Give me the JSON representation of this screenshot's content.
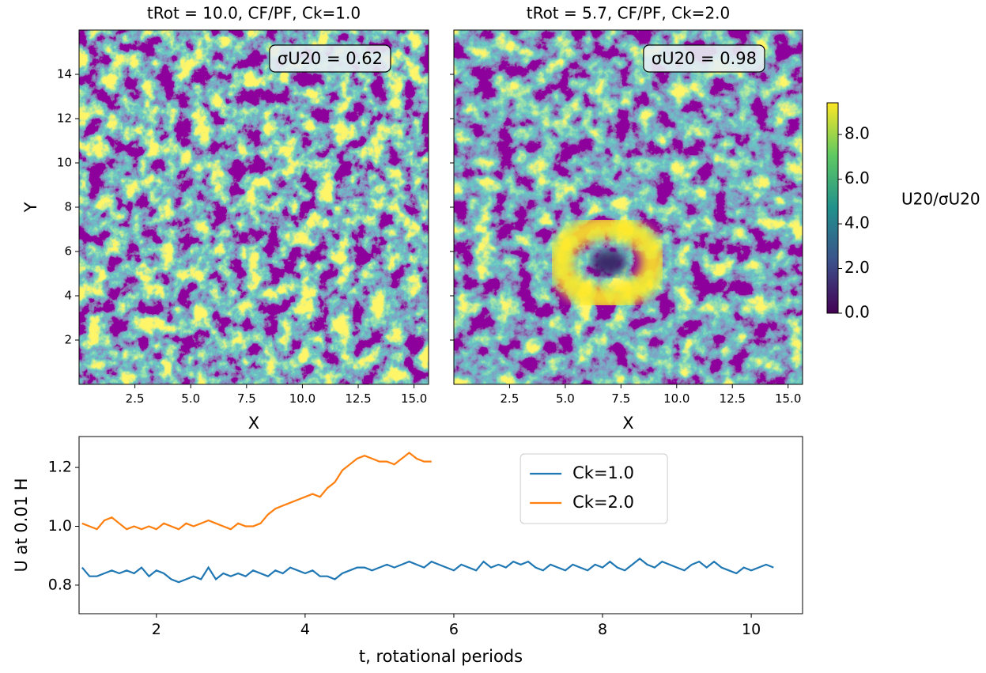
{
  "chart_data": [
    {
      "type": "heatmap",
      "title": "tRot = 10.0, CF/PF, Ck=1.0",
      "xlabel": "X",
      "ylabel": "Y",
      "xlim": [
        0,
        15.65
      ],
      "ylim": [
        0,
        16
      ],
      "xticks": [
        2.5,
        {
          "value": 5,
          "label": "5.0"
        },
        7.5,
        {
          "value": 10,
          "label": "10.0"
        },
        12.5,
        {
          "value": 15,
          "label": "15.0"
        }
      ],
      "yticks": [
        2,
        4,
        6,
        8,
        10,
        12,
        14
      ],
      "annotation": "σU20 = 0.62"
    },
    {
      "type": "heatmap",
      "title": "tRot = 5.7, CF/PF, Ck=2.0",
      "xlabel": "X",
      "xlim": [
        0,
        15.65
      ],
      "ylim": [
        0,
        16
      ],
      "xticks": [
        2.5,
        {
          "value": 5,
          "label": "5.0"
        },
        7.5,
        {
          "value": 10,
          "label": "10.0"
        },
        12.5,
        {
          "value": 15,
          "label": "15.0"
        }
      ],
      "yticks": [
        2,
        4,
        6,
        8,
        10,
        12,
        14
      ],
      "yticklabels": false,
      "annotation": "σU20 = 0.98"
    },
    {
      "type": "colorbar",
      "label": "U20/σU20",
      "lim": [
        0,
        9.42
      ],
      "ticks": [
        {
          "value": 0,
          "label": "0.0"
        },
        {
          "value": 2,
          "label": "2.0"
        },
        {
          "value": 4,
          "label": "4.0"
        },
        {
          "value": 6,
          "label": "6.0"
        },
        {
          "value": 8,
          "label": "8.0"
        }
      ],
      "colors": [
        "#440154",
        "#3b528b",
        "#21918c",
        "#5ec962",
        "#fde725"
      ]
    },
    {
      "type": "line",
      "xlabel": "t, rotational periods",
      "ylabel": "U at 0.01 H",
      "xlim": [
        0.96,
        10.69
      ],
      "ylim": [
        0.703,
        1.305
      ],
      "xticks": [
        2,
        4,
        6,
        8,
        10
      ],
      "yticks": [
        0.8,
        {
          "value": 1,
          "label": "1.0"
        },
        1.2
      ],
      "legend": "upper center",
      "series": [
        {
          "name": "Ck=1.0",
          "color": "#1f77b4",
          "x": [
            1.0,
            1.1,
            1.2,
            1.3,
            1.4,
            1.5,
            1.6,
            1.7,
            1.8,
            1.9,
            2.0,
            2.1,
            2.2,
            2.3,
            2.4,
            2.5,
            2.6,
            2.7,
            2.8,
            2.9,
            3.0,
            3.1,
            3.2,
            3.3,
            3.4,
            3.5,
            3.6,
            3.7,
            3.8,
            3.9,
            4.0,
            4.1,
            4.2,
            4.3,
            4.4,
            4.5,
            4.6,
            4.7,
            4.8,
            4.9,
            5.0,
            5.1,
            5.2,
            5.3,
            5.4,
            5.5,
            5.6,
            5.7,
            5.8,
            5.9,
            6.0,
            6.1,
            6.2,
            6.3,
            6.4,
            6.5,
            6.6,
            6.7,
            6.8,
            6.9,
            7.0,
            7.1,
            7.2,
            7.3,
            7.4,
            7.5,
            7.6,
            7.7,
            7.8,
            7.9,
            8.0,
            8.1,
            8.2,
            8.3,
            8.4,
            8.5,
            8.6,
            8.7,
            8.8,
            8.9,
            9.0,
            9.1,
            9.2,
            9.3,
            9.4,
            9.5,
            9.6,
            9.7,
            9.8,
            9.9,
            10.0,
            10.1,
            10.2,
            10.3
          ],
          "values": [
            0.86,
            0.83,
            0.83,
            0.84,
            0.85,
            0.84,
            0.85,
            0.84,
            0.86,
            0.83,
            0.85,
            0.84,
            0.82,
            0.81,
            0.82,
            0.83,
            0.82,
            0.86,
            0.82,
            0.84,
            0.83,
            0.84,
            0.83,
            0.85,
            0.84,
            0.83,
            0.85,
            0.84,
            0.86,
            0.85,
            0.84,
            0.85,
            0.83,
            0.83,
            0.82,
            0.84,
            0.85,
            0.86,
            0.86,
            0.85,
            0.86,
            0.87,
            0.86,
            0.87,
            0.88,
            0.87,
            0.86,
            0.88,
            0.87,
            0.86,
            0.85,
            0.87,
            0.86,
            0.85,
            0.88,
            0.86,
            0.87,
            0.86,
            0.88,
            0.87,
            0.88,
            0.86,
            0.85,
            0.87,
            0.86,
            0.85,
            0.87,
            0.86,
            0.85,
            0.87,
            0.86,
            0.88,
            0.86,
            0.85,
            0.87,
            0.89,
            0.87,
            0.86,
            0.88,
            0.87,
            0.86,
            0.85,
            0.87,
            0.88,
            0.86,
            0.88,
            0.86,
            0.85,
            0.84,
            0.86,
            0.85,
            0.86,
            0.87,
            0.86
          ]
        },
        {
          "name": "Ck=2.0",
          "color": "#ff7f0e",
          "x": [
            1.0,
            1.1,
            1.2,
            1.3,
            1.4,
            1.5,
            1.6,
            1.7,
            1.8,
            1.9,
            2.0,
            2.1,
            2.2,
            2.3,
            2.4,
            2.5,
            2.6,
            2.7,
            2.8,
            2.9,
            3.0,
            3.1,
            3.2,
            3.3,
            3.4,
            3.5,
            3.6,
            3.7,
            3.8,
            3.9,
            4.0,
            4.1,
            4.2,
            4.3,
            4.4,
            4.5,
            4.6,
            4.7,
            4.8,
            4.9,
            5.0,
            5.1,
            5.2,
            5.3,
            5.4,
            5.5,
            5.6,
            5.7
          ],
          "values": [
            1.01,
            1.0,
            0.99,
            1.02,
            1.03,
            1.01,
            0.99,
            1.0,
            0.99,
            1.0,
            0.99,
            1.01,
            1.0,
            0.99,
            1.01,
            1.0,
            1.01,
            1.02,
            1.01,
            1.0,
            0.99,
            1.01,
            1.0,
            1.0,
            1.01,
            1.04,
            1.06,
            1.07,
            1.08,
            1.09,
            1.1,
            1.11,
            1.1,
            1.13,
            1.15,
            1.19,
            1.21,
            1.23,
            1.24,
            1.23,
            1.22,
            1.22,
            1.21,
            1.23,
            1.25,
            1.23,
            1.22,
            1.22
          ]
        }
      ]
    }
  ]
}
